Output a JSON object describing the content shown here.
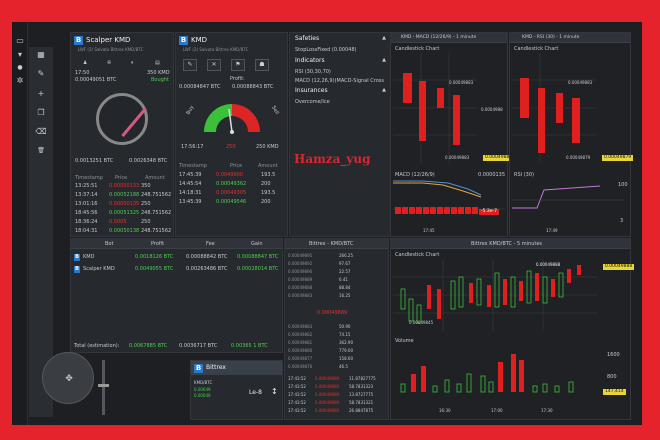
{
  "side_icons": [
    {
      "name": "monitor-icon",
      "g": "▭"
    },
    {
      "name": "filter-icon",
      "g": "▾"
    },
    {
      "name": "user-icon",
      "g": "●"
    },
    {
      "name": "gears-icon",
      "g": "✲"
    }
  ],
  "tool_icons": [
    {
      "name": "grid-icon",
      "g": "▦"
    },
    {
      "name": "edit-icon",
      "g": "✎"
    },
    {
      "name": "plus-icon",
      "g": "+"
    },
    {
      "name": "copy-icon",
      "g": "❐"
    },
    {
      "name": "eraser-icon",
      "g": "⌫"
    },
    {
      "name": "trash-icon",
      "g": "🗑"
    }
  ],
  "scalper": {
    "title": "Scalper KMD",
    "subtitle": "LWF (2) Salvato Bittrex KMD/BTC",
    "time": "17:50",
    "ask": "0.00049051 BTC",
    "kmd": "350 KMD",
    "status": "Bought",
    "bal1": "0.0013251 BTC",
    "bal2": "0.0026348 BTC",
    "th": [
      "Timestamp",
      "Price",
      "Amount"
    ],
    "rows": [
      [
        "13:25:51",
        "0.00050133",
        "350"
      ],
      [
        "13:37:14",
        "0.00052188",
        "248.751562"
      ],
      [
        "13:01:16",
        "0.00050135",
        "250"
      ],
      [
        "18:45:56",
        "0.00051325",
        "248.751562"
      ],
      [
        "18:36:24",
        "0.0005",
        "250"
      ],
      [
        "18:04:31",
        "0.00050138",
        "248.751562"
      ]
    ]
  },
  "kmd": {
    "title": "KMD",
    "subtitle": "LWF (2) Salvato Bittrex KMD/BTC",
    "profit_label": "Profit:",
    "profit_value": "0.00084847 BTC",
    "price2": "0.00088843 BTC",
    "buy": "Buy",
    "sell": "Sell",
    "time": "17:56:17",
    "qty": "250",
    "kmdq": "250 KMD",
    "th": [
      "Timestamp",
      "Price",
      "Amount"
    ],
    "rows": [
      [
        "17:45:39",
        "0.0049900",
        "193.5"
      ],
      [
        "14:45:54",
        "0.00049362",
        "200"
      ],
      [
        "14:18:31",
        "0.00049305",
        "193.5"
      ],
      [
        "13:45:39",
        "0.00049546",
        "200"
      ]
    ]
  },
  "safeties": {
    "title": "Safeties",
    "item1": "StopLossFixed (0.00048)",
    "indicators": "Indicators",
    "rsi": "RSI (30,30,70)",
    "macd": "MACD (12,26,9)(MACD-Signal Cross",
    "insurances": "Insurances",
    "overcome": "Overcome/Ice"
  },
  "watermark": "Hamza_yug",
  "macd_chart": {
    "title": "KMD - MACD (12/26/9) - 1 minute",
    "candle": "Candlestick Chart",
    "p1": "0.00049883",
    "p2": "0.0004988",
    "p3": "0.00049883",
    "macd": "MACD (12/26/9)",
    "m1": "0.0000135",
    "m2": "-5.3e-7",
    "time": "17:45"
  },
  "rsi_chart": {
    "title": "KMD - RSI (30) - 1 minute",
    "candle": "Candlestick Chart",
    "p1": "0.00049883",
    "p3": "0.00049879",
    "rsi": "RSI (30)",
    "r1": "100",
    "r2": "3",
    "time": "17:49"
  },
  "bot_table": {
    "th": [
      "Bot",
      "Profit",
      "Fee",
      "Gain"
    ],
    "rows": [
      {
        "bot": "KMD",
        "profit": "0.0018126 BTC",
        "fee": "0.00088842 BTC",
        "gain": "0.00088847 BTC"
      },
      {
        "bot": "Scalper KMD",
        "profit": "0.0049055 BTC",
        "fee": "0.00263486 BTC",
        "gain": "0.00028014 BTC"
      }
    ],
    "total_label": "Total (estimation):",
    "total_profit": "0.0067885 BTC",
    "total_fee": "0.0036717 BTC",
    "total_gain": "0.00365 1 BTC"
  },
  "wallet": {
    "title": "Bittrex",
    "coin": "KMD/BTC",
    "v1": "0.00049",
    "v2": "0.00049",
    "le": "Le-8"
  },
  "orderbook": {
    "title": "Bittrex - KMD/BTC",
    "asks": [
      [
        "0.00049895",
        "266.25"
      ],
      [
        "0.00049892",
        "97.67"
      ],
      [
        "0.00049890",
        "22.57"
      ],
      [
        "0.00049889",
        "6.41"
      ],
      [
        "0.00049888",
        "88.84"
      ],
      [
        "0.00049883",
        "16.25"
      ]
    ],
    "mid": "0.00049889",
    "bids": [
      [
        "0.00049883",
        "50.90"
      ],
      [
        "0.00049882",
        "74.15"
      ],
      [
        "0.00049881",
        "362.90"
      ],
      [
        "0.00049880",
        "779.00"
      ],
      [
        "0.00049877",
        "158.60"
      ],
      [
        "0.00049876",
        "46.5"
      ]
    ],
    "trades": [
      [
        "17:43:52",
        "0.00049889",
        "11.87827775"
      ],
      [
        "17:43:52",
        "0.00049880",
        "58.7831323"
      ],
      [
        "17:43:52",
        "0.00049889",
        "13.8727775"
      ],
      [
        "17:43:52",
        "0.00049889",
        "58.7831321"
      ],
      [
        "17:43:52",
        "0.00049880",
        "26.8847875"
      ]
    ]
  },
  "big_chart": {
    "title": "Bittrex KMD/BTC - 5 minutes",
    "candle": "Candlestick Chart",
    "p1": "0.00049888",
    "p2": "0.00049845",
    "p3": "0.00049888",
    "volume": "Volume",
    "v1": "1600",
    "v2": "800",
    "v3": "147,414",
    "t1": "16:30",
    "t2": "17:00",
    "t3": "17:30"
  }
}
